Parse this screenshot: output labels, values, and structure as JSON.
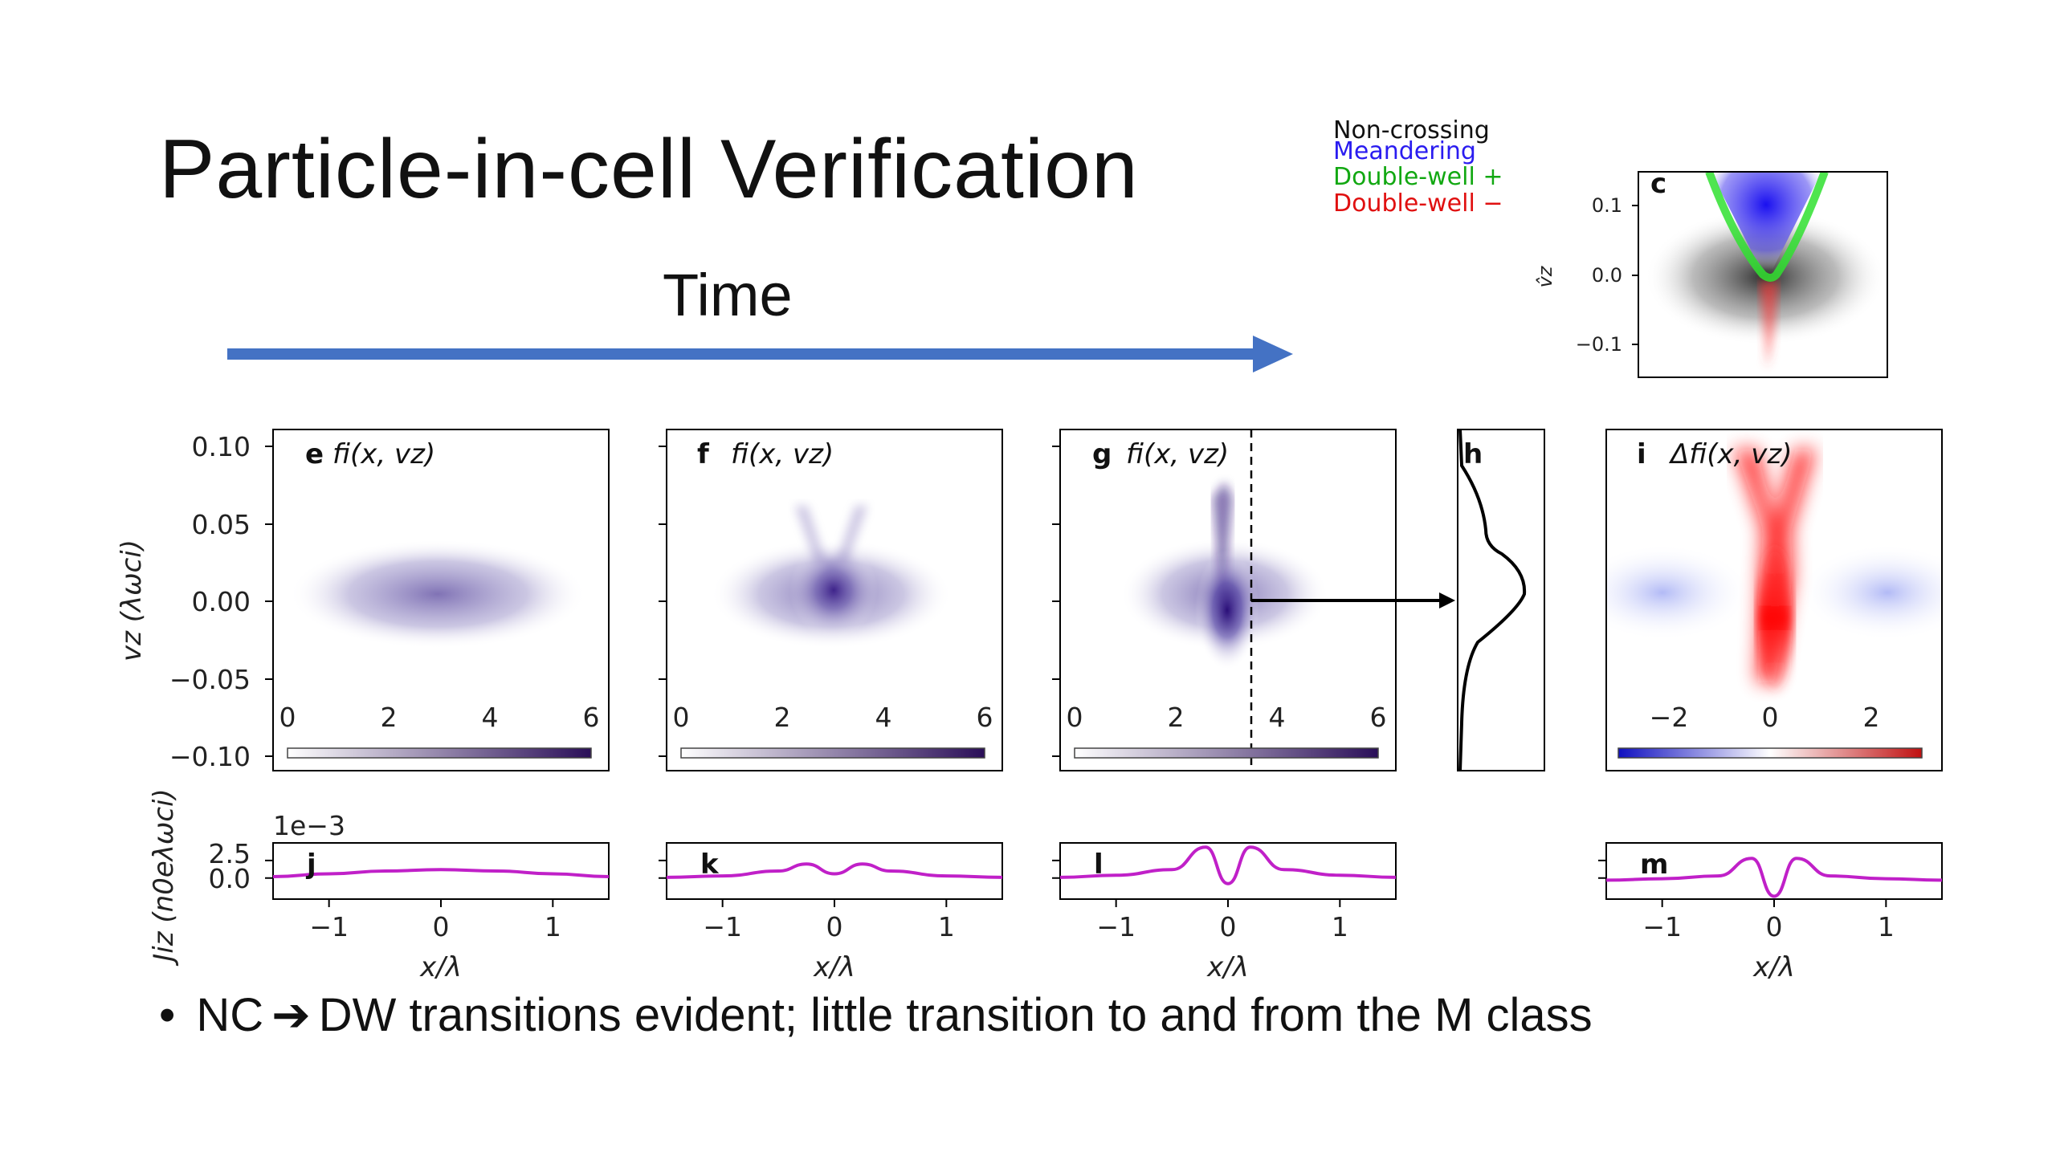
{
  "slide": {
    "title": "Particle-in-cell Verification",
    "time_label": "Time",
    "bullet": {
      "marker": "•",
      "before_arrow": "NC",
      "arrow_icon": "heavy-right-arrow-icon",
      "after_arrow": "DW transitions evident; little transition to and from the M class"
    }
  },
  "legend": {
    "items": [
      {
        "label": "Non-crossing",
        "color": "#111111"
      },
      {
        "label": "Meandering",
        "color": "#2a1cf0"
      },
      {
        "label": "Double-well +",
        "color": "#12a812"
      },
      {
        "label": "Double-well −",
        "color": "#e01010"
      }
    ]
  },
  "colors": {
    "time_arrow": "#4472c4",
    "density": "#3b1f7a",
    "current": "#c020c8",
    "positive": "#e01010",
    "negative": "#2a3cf0"
  },
  "chart_data": [
    {
      "id": "c",
      "type": "heatmap",
      "panel_letter": "c",
      "ylabel": "v̂z",
      "yticks": [
        "0.1",
        "0.0",
        "−0.1"
      ]
    },
    {
      "id": "e",
      "type": "heatmap",
      "panel_letter": "e",
      "title": "fi(x, vz)",
      "ylabel": "vz (λωci)",
      "yticks": [
        "0.10",
        "0.05",
        "0.00",
        "−0.05",
        "−0.10"
      ],
      "ylim": [
        -0.1,
        0.1
      ],
      "colorbar_ticks": [
        "0",
        "2",
        "4",
        "6"
      ]
    },
    {
      "id": "f",
      "type": "heatmap",
      "panel_letter": "f",
      "title": "fi(x, vz)",
      "colorbar_ticks": [
        "0",
        "2",
        "4",
        "6"
      ]
    },
    {
      "id": "g",
      "type": "heatmap",
      "panel_letter": "g",
      "title": "fi(x, vz)",
      "colorbar_ticks": [
        "0",
        "2",
        "4",
        "6"
      ]
    },
    {
      "id": "h",
      "type": "line",
      "panel_letter": "h"
    },
    {
      "id": "i",
      "type": "heatmap",
      "panel_letter": "i",
      "title": "Δfi(x, vz)",
      "colorbar_ticks": [
        "−2",
        "0",
        "2"
      ]
    },
    {
      "id": "jkml",
      "type": "line",
      "ylabel": "Jiz (n0eλωci)",
      "multiplier": "1e−3",
      "yticks": [
        "2.5",
        "0.0"
      ],
      "xlabel": "x/λ",
      "xticks": [
        "−1",
        "0",
        "1"
      ],
      "xlim": [
        -1.5,
        1.5
      ],
      "panels": [
        {
          "letter": "j",
          "x": [
            -1.5,
            -1.0,
            -0.5,
            0.0,
            0.5,
            1.0,
            1.5
          ],
          "y": [
            0.2,
            0.6,
            1.0,
            1.2,
            1.0,
            0.6,
            0.2
          ]
        },
        {
          "letter": "k",
          "x": [
            -1.5,
            -1.0,
            -0.5,
            -0.25,
            0.0,
            0.25,
            0.5,
            1.0,
            1.5
          ],
          "y": [
            0.1,
            0.3,
            1.0,
            2.0,
            0.6,
            2.0,
            1.0,
            0.3,
            0.1
          ]
        },
        {
          "letter": "l",
          "x": [
            -1.5,
            -1.0,
            -0.5,
            -0.2,
            0.0,
            0.2,
            0.5,
            1.0,
            1.5
          ],
          "y": [
            0.1,
            0.4,
            1.2,
            4.4,
            -0.8,
            4.4,
            1.2,
            0.4,
            0.1
          ]
        },
        {
          "letter": "m",
          "x": [
            -1.5,
            -1.0,
            -0.5,
            -0.2,
            0.0,
            0.2,
            0.5,
            1.0,
            1.5
          ],
          "y": [
            -0.3,
            -0.1,
            0.3,
            2.8,
            -2.6,
            2.8,
            0.3,
            -0.1,
            -0.3
          ]
        }
      ]
    }
  ]
}
